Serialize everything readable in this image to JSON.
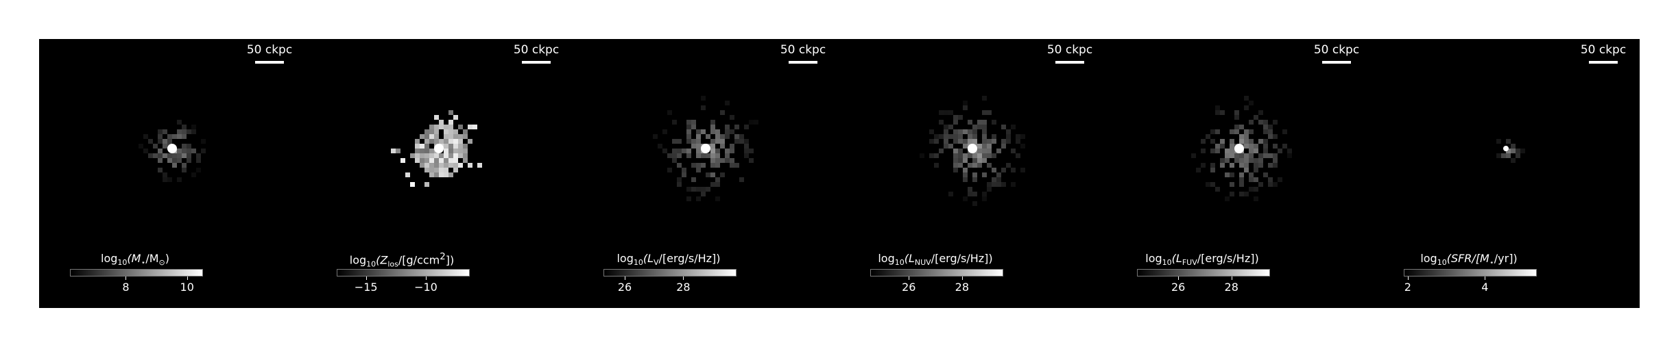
{
  "scale_bar_label": "50 ckpc",
  "panels": [
    {
      "id": "mstar",
      "label_parts": [
        "log",
        "10",
        "(M",
        "⋆",
        "/M",
        "⊙",
        ")"
      ],
      "ticks": [
        {
          "v": 0.42,
          "t": "8"
        },
        {
          "v": 0.88,
          "t": "10"
        }
      ],
      "spread": 0.28,
      "core": 1.0,
      "scatter": "sparse"
    },
    {
      "id": "zlos",
      "label_parts": [
        "log",
        "10",
        "(Z",
        "los",
        "/[g/ccm",
        "2",
        "])"
      ],
      "ticks": [
        {
          "v": 0.22,
          "t": "−15"
        },
        {
          "v": 0.67,
          "t": "−10"
        }
      ],
      "spread": 0.5,
      "core": 1.0,
      "scatter": "bright"
    },
    {
      "id": "lv",
      "label_parts": [
        "log",
        "10",
        "(L",
        "V",
        "/[erg/s/Hz])",
        "",
        ""
      ],
      "ticks": [
        {
          "v": 0.16,
          "t": "26"
        },
        {
          "v": 0.6,
          "t": "28"
        }
      ],
      "spread": 0.45,
      "core": 1.0,
      "scatter": "medium"
    },
    {
      "id": "lnuv",
      "label_parts": [
        "log",
        "10",
        "(L",
        "NUV",
        "/[erg/s/Hz])",
        "",
        ""
      ],
      "ticks": [
        {
          "v": 0.29,
          "t": "26"
        },
        {
          "v": 0.69,
          "t": "28"
        }
      ],
      "spread": 0.45,
      "core": 1.0,
      "scatter": "medium"
    },
    {
      "id": "lfuv",
      "label_parts": [
        "log",
        "10",
        "(L",
        "FUV",
        "/[erg/s/Hz])",
        "",
        ""
      ],
      "ticks": [
        {
          "v": 0.31,
          "t": "26"
        },
        {
          "v": 0.71,
          "t": "28"
        }
      ],
      "spread": 0.45,
      "core": 1.0,
      "scatter": "medium"
    },
    {
      "id": "sfr",
      "label_parts": [
        "log",
        "10",
        "(SFR/[M",
        "⋆",
        "/yr])",
        "",
        ""
      ],
      "ticks": [
        {
          "v": 0.03,
          "t": "2"
        },
        {
          "v": 0.61,
          "t": "4"
        }
      ],
      "spread": 0.12,
      "core": 1.0,
      "scatter": "tiny"
    }
  ]
}
